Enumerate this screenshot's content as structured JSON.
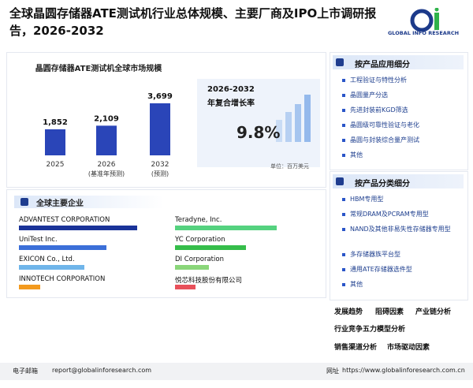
{
  "header": {
    "title": "全球晶圆存储器ATE测试机行业总体规模、主要厂商及IPO上市调研报告，2026-2032",
    "logo": "GLOBAL INFO RESEARCH"
  },
  "chart_data": {
    "type": "bar",
    "title": "晶圆存储器ATE测试机全球市场规模",
    "categories": [
      "2025",
      "2026",
      "2032"
    ],
    "category_notes": [
      null,
      "(基准年预测)",
      "(预测)"
    ],
    "values": [
      1852,
      2109,
      3699
    ],
    "value_labels": [
      "1,852",
      "2,109",
      "3,699"
    ],
    "color": "#2a45b8"
  },
  "cagr": {
    "label_lines": [
      "2026-2032",
      "年复合增长率"
    ],
    "value": "9.8%",
    "unit": "单位：百万美元"
  },
  "companies": {
    "title": "全球主要企业",
    "items": [
      {
        "name": "ADVANTEST CORPORATION",
        "bar": 88,
        "color": "#1a3399"
      },
      {
        "name": "UniTest Inc.",
        "bar": 65,
        "color": "#3b6fd8"
      },
      {
        "name": "EXICON Co., Ltd.",
        "bar": 49,
        "color": "#6fb5ea"
      },
      {
        "name": "INNOTECH CORPORATION",
        "bar": 16,
        "color": "#f39a1e"
      },
      {
        "name": "Teradyne, Inc.",
        "bar": 76,
        "color": "#55d27f"
      },
      {
        "name": "YC Corporation",
        "bar": 53,
        "color": "#35bd4a"
      },
      {
        "name": "DI Corporation",
        "bar": 25,
        "color": "#8ad67a"
      },
      {
        "name": "悦芯科技股份有限公司",
        "bar": 15,
        "color": "#e8505a"
      }
    ]
  },
  "segments": [
    {
      "title": "按产品应用细分",
      "items": [
        "工程验证与特性分析",
        "晶圆量产分选",
        "先进封装前KGD筛选",
        "晶圆级可靠性验证与老化",
        "晶圆与封装综合量产测试",
        "其他"
      ]
    },
    {
      "title": "按产品分类细分",
      "items": [
        "HBM专用型",
        "常规DRAM及PCRAM专用型",
        "NAND及其他非易失性存储器专用型",
        "多存储器族平台型",
        "通用ATE存储器选件型",
        "其他"
      ]
    }
  ],
  "tags": [
    "发展趋势",
    "阻碍因素",
    "产业链分析",
    "行业竞争五力模型分析",
    "销售渠道分析",
    "市场驱动因素"
  ],
  "footer": {
    "email_label": "电子邮箱",
    "email": "report@globalinforesearch.com",
    "website_label": "网址",
    "website": "https://www.globalinforesearch.com.cn"
  }
}
